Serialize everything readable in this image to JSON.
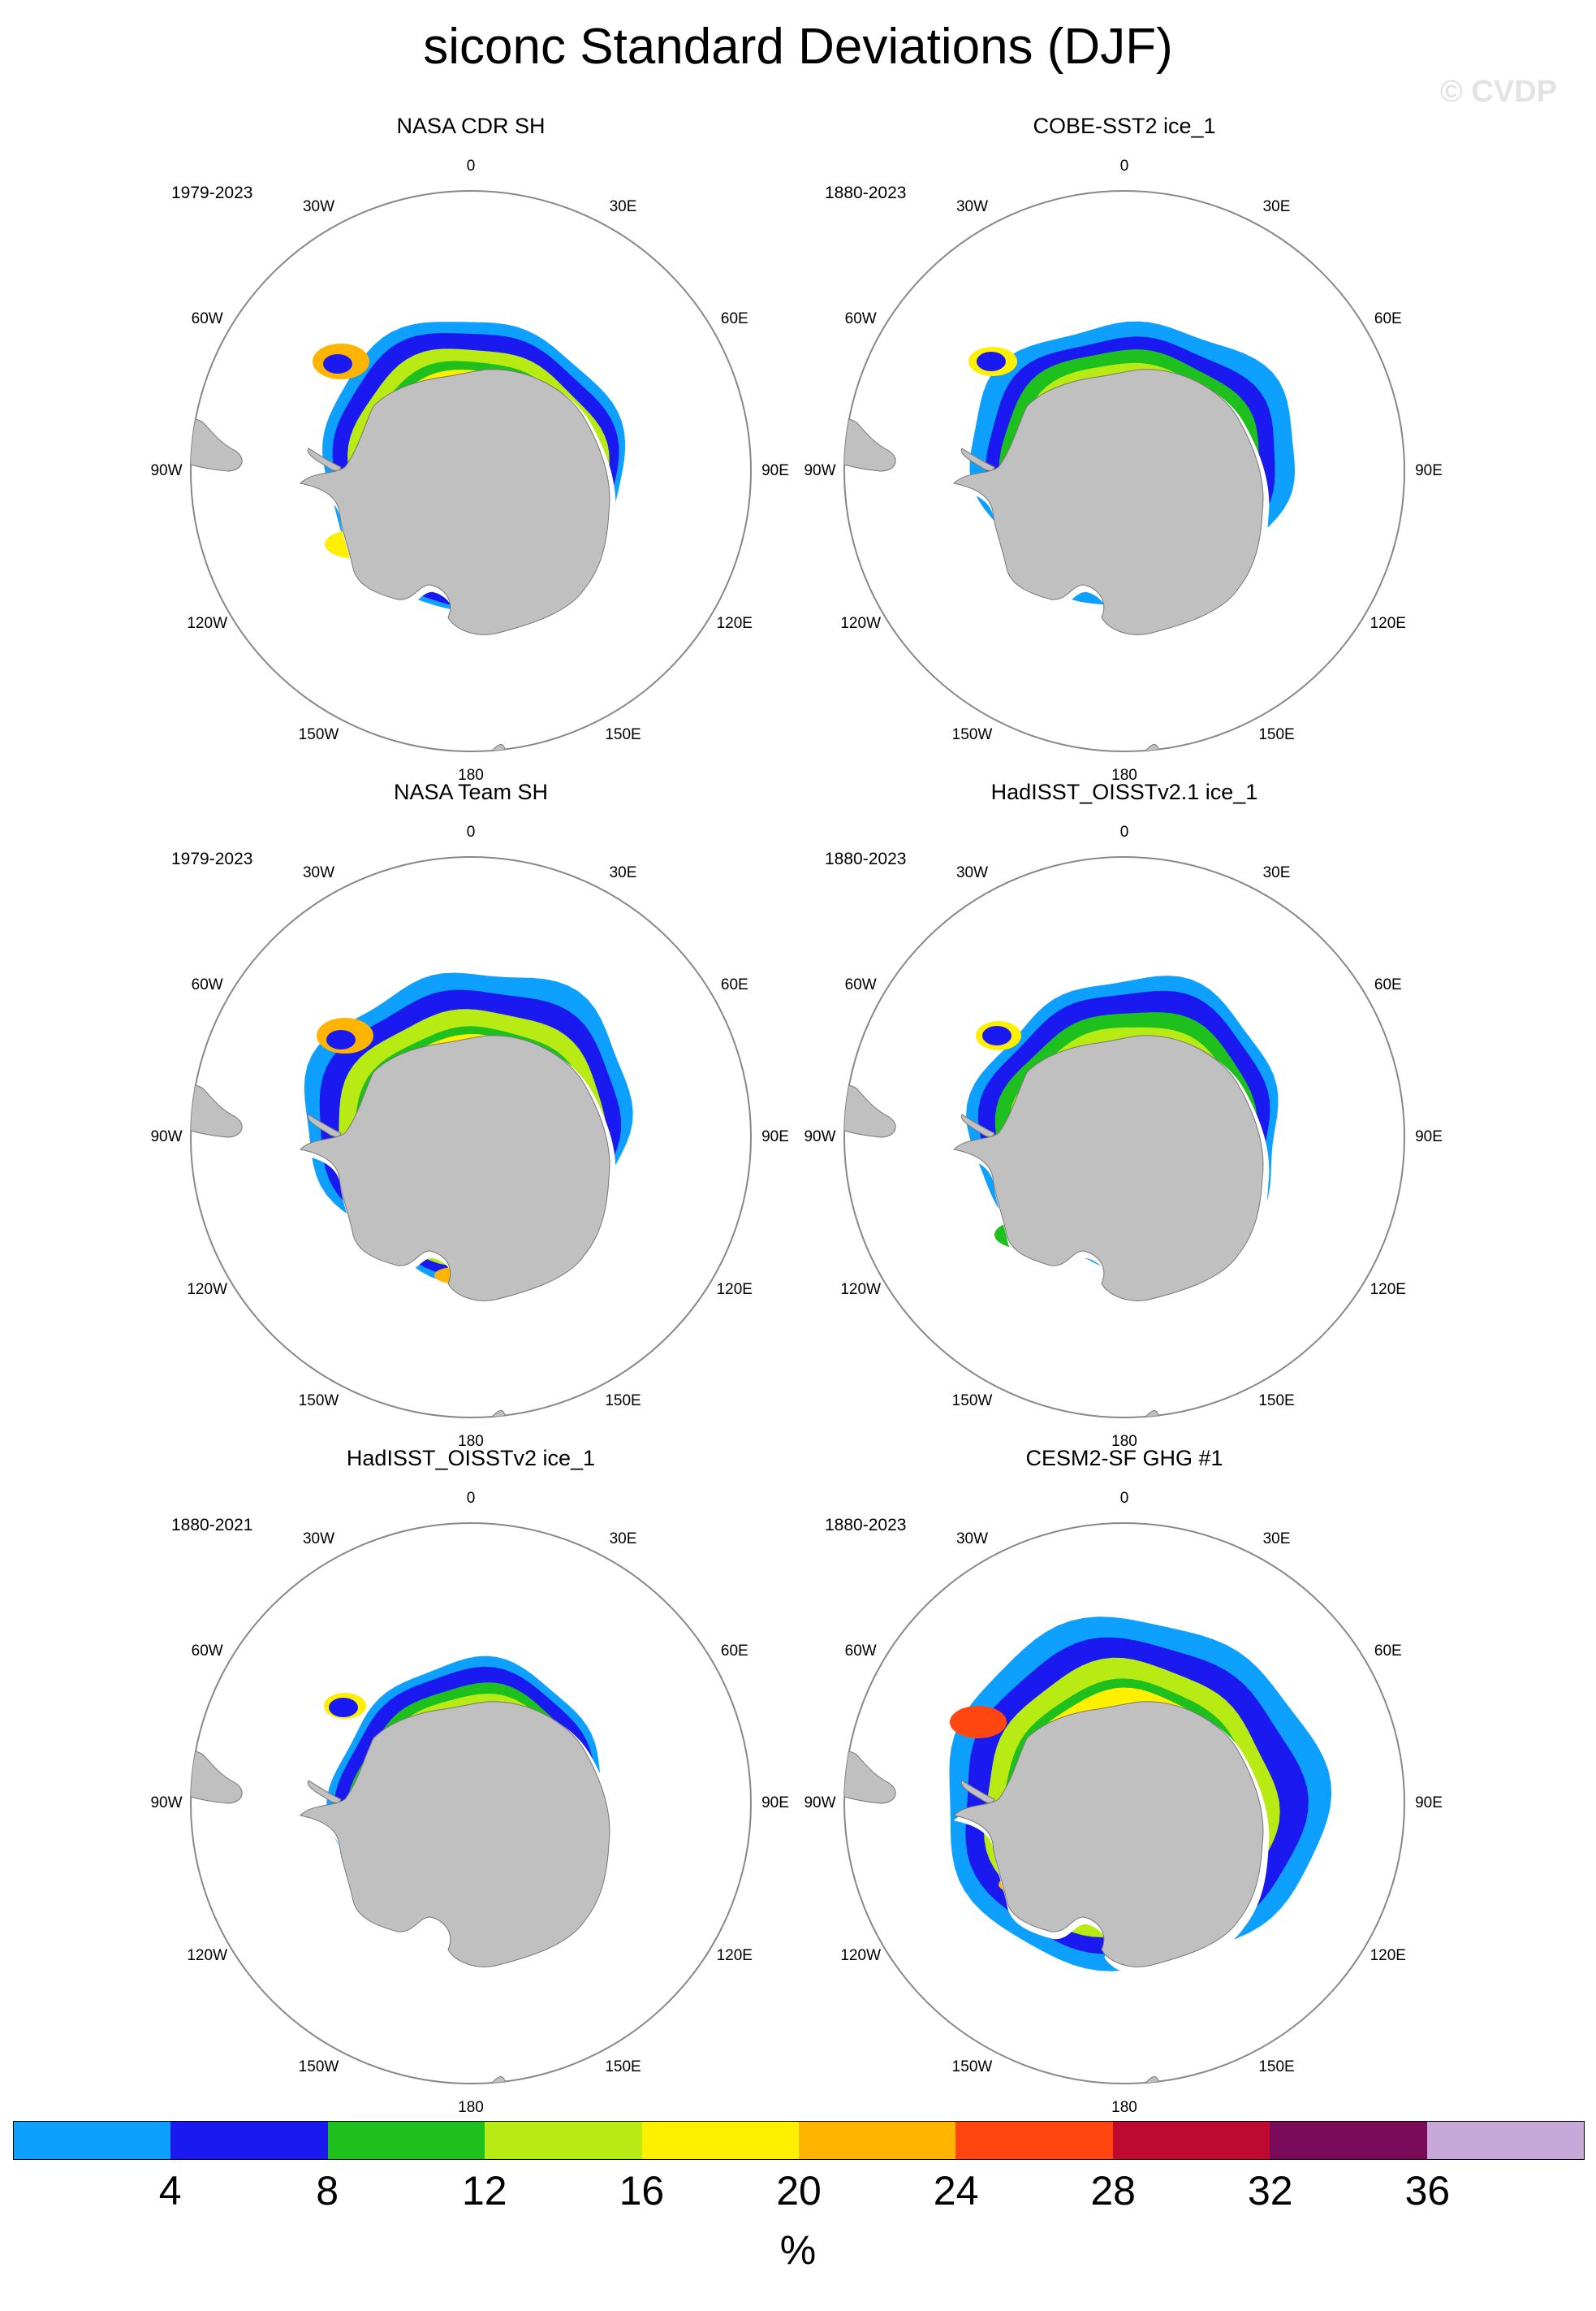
{
  "title": "siconc Standard Deviations (DJF)",
  "watermark": "© CVDP",
  "panels": [
    {
      "title": "NASA CDR SH",
      "years": "1979-2023"
    },
    {
      "title": "COBE-SST2 ice_1",
      "years": "1880-2023"
    },
    {
      "title": "NASA Team SH",
      "years": "1979-2023"
    },
    {
      "title": "HadISST_OISSTv2.1 ice_1",
      "years": "1880-2023"
    },
    {
      "title": "HadISST_OISSTv2 ice_1",
      "years": "1880-2021"
    },
    {
      "title": "CESM2-SF GHG #1",
      "years": "1880-2023"
    }
  ],
  "longitude_labels": [
    "0",
    "30E",
    "60E",
    "90E",
    "120E",
    "150E",
    "180",
    "150W",
    "120W",
    "90W",
    "60W",
    "30W"
  ],
  "colorbar": {
    "colors": [
      "#0ea0ff",
      "#1a1af0",
      "#1ec01e",
      "#b8ea14",
      "#fff000",
      "#ffb400",
      "#ff4610",
      "#be0a30",
      "#7a0a5a",
      "#c8a8d8"
    ],
    "ticks": [
      "4",
      "8",
      "12",
      "16",
      "20",
      "24",
      "28",
      "32",
      "36"
    ],
    "unit": "%"
  },
  "map_colors": {
    "land": "#c0c0c0",
    "ocean": "#ffffff"
  }
}
